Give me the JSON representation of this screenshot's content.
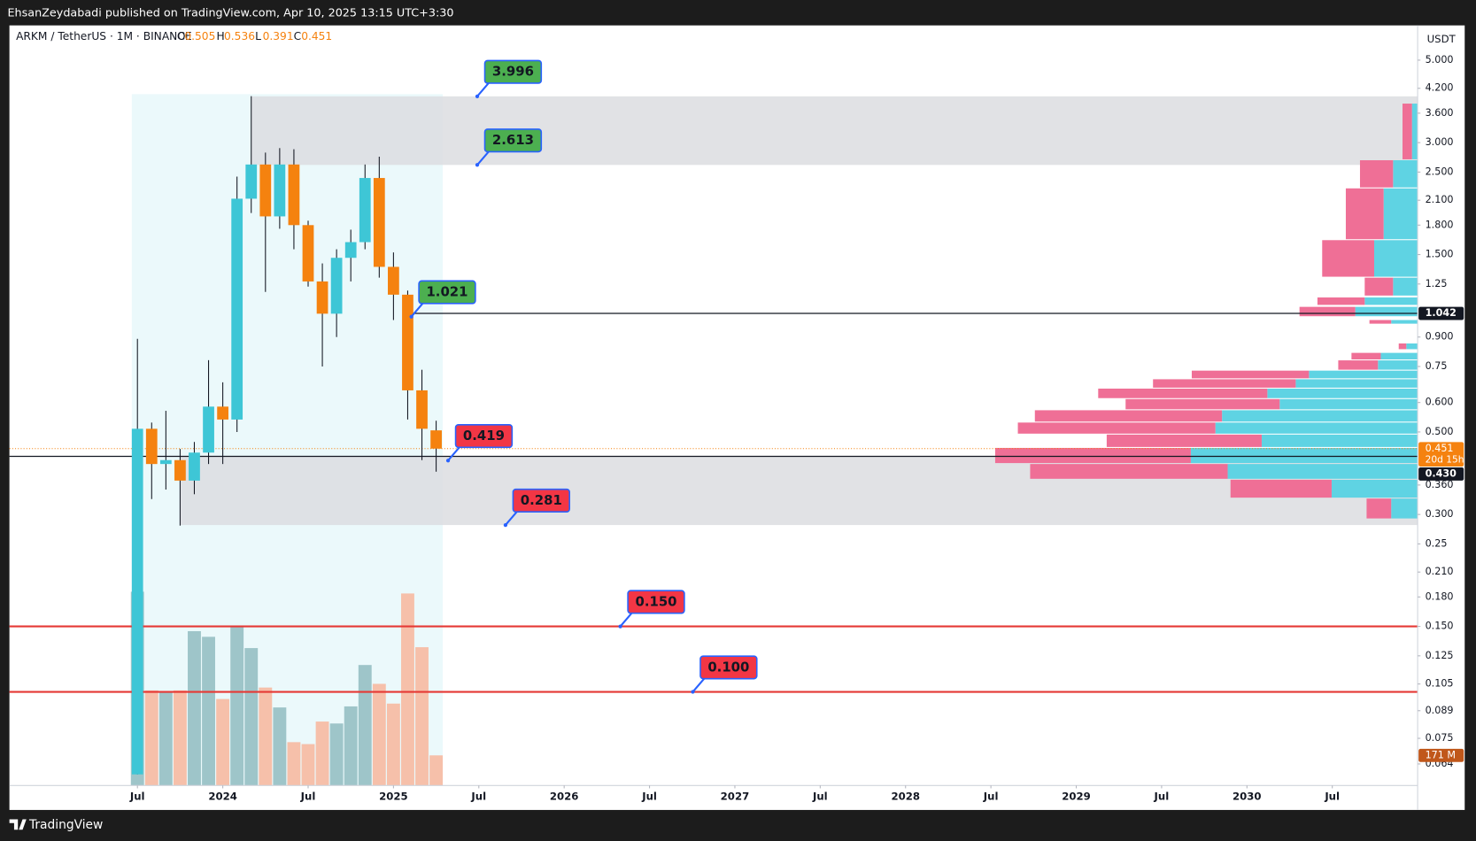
{
  "header": {
    "publisher": "EhsanZeydabadi published on TradingView.com, Apr 10, 2025 13:15 UTC+3:30"
  },
  "footer": {
    "brand": "TradingView"
  },
  "chart_data": {
    "type": "candlestick",
    "title": "ARKM / TetherUS · 1M · BINANCE",
    "ohlc_keys": [
      "O",
      "H",
      "L",
      "C"
    ],
    "axis_unit": "USDT",
    "log_scale": true,
    "up_color": "#3ec6d6",
    "down_color": "#f5820f",
    "x": [
      "2023-07",
      "2023-08",
      "2023-09",
      "2023-10",
      "2023-11",
      "2023-12",
      "2024-01",
      "2024-02",
      "2024-03",
      "2024-04",
      "2024-05",
      "2024-06",
      "2024-07",
      "2024-08",
      "2024-09",
      "2024-10",
      "2024-11",
      "2024-12",
      "2025-01",
      "2025-02",
      "2025-03",
      "2025-04"
    ],
    "open": [
      0.06,
      0.51,
      0.41,
      0.42,
      0.37,
      0.44,
      0.585,
      0.54,
      2.12,
      2.62,
      1.9,
      2.62,
      1.8,
      1.27,
      1.04,
      1.47,
      1.62,
      2.41,
      1.39,
      1.17,
      0.647,
      0.505
    ],
    "high": [
      0.89,
      0.53,
      0.57,
      0.45,
      0.47,
      0.78,
      0.68,
      2.43,
      4.0,
      2.82,
      2.9,
      2.88,
      1.85,
      1.42,
      1.55,
      1.75,
      2.62,
      2.75,
      1.52,
      1.2,
      0.735,
      0.536
    ],
    "low": [
      0.06,
      0.33,
      0.35,
      0.28,
      0.34,
      0.41,
      0.41,
      0.5,
      1.94,
      1.19,
      1.76,
      1.55,
      1.23,
      0.75,
      0.9,
      1.27,
      1.55,
      1.3,
      1.0,
      0.54,
      0.42,
      0.391
    ],
    "close": [
      0.51,
      0.41,
      0.42,
      0.37,
      0.44,
      0.585,
      0.54,
      2.12,
      2.62,
      1.9,
      2.62,
      1.8,
      1.27,
      1.04,
      1.47,
      1.62,
      2.41,
      1.39,
      1.17,
      0.647,
      0.51,
      0.451
    ],
    "countdown": "20d 15h",
    "volume": {
      "values": [
        1100,
        540,
        530,
        540,
        876,
        844,
        491,
        903,
        780,
        556,
        443,
        246,
        235,
        363,
        352,
        449,
        684,
        577,
        465,
        1090,
        785,
        171
      ],
      "last_label": "171 M",
      "up_color": "#96bfc3",
      "down_color": "#f7b9a1"
    },
    "xlim": [
      "2022-10",
      "2031-01"
    ],
    "xticks": [
      {
        "value": "2023-07",
        "label": "Jul"
      },
      {
        "value": "2024-01",
        "label": "2024"
      },
      {
        "value": "2024-07",
        "label": "Jul"
      },
      {
        "value": "2025-01",
        "label": "2025"
      },
      {
        "value": "2025-07",
        "label": "Jul"
      },
      {
        "value": "2026-01",
        "label": "2026"
      },
      {
        "value": "2026-07",
        "label": "Jul"
      },
      {
        "value": "2027-01",
        "label": "2027"
      },
      {
        "value": "2027-07",
        "label": "Jul"
      },
      {
        "value": "2028-01",
        "label": "2028"
      },
      {
        "value": "2028-07",
        "label": "Jul"
      },
      {
        "value": "2029-01",
        "label": "2029"
      },
      {
        "value": "2029-07",
        "label": "Jul"
      },
      {
        "value": "2030-01",
        "label": "2030"
      },
      {
        "value": "2030-07",
        "label": "Jul"
      }
    ],
    "ylim": [
      0.056,
      6.2
    ],
    "yticks": [
      {
        "value": 5,
        "label": "5.000"
      },
      {
        "value": 4.2,
        "label": "4.200"
      },
      {
        "value": 3.6,
        "label": "3.600"
      },
      {
        "value": 3,
        "label": "3.000"
      },
      {
        "value": 2.5,
        "label": "2.500"
      },
      {
        "value": 2.1,
        "label": "2.100"
      },
      {
        "value": 1.8,
        "label": "1.800"
      },
      {
        "value": 1.5,
        "label": "1.500"
      },
      1.25,
      {
        "value": 0.9,
        "label": "0.900"
      },
      0.75,
      {
        "value": 0.6,
        "label": "0.600"
      },
      {
        "value": 0.5,
        "label": "0.500"
      },
      {
        "value": 0.36,
        "label": "0.360"
      },
      {
        "value": 0.3,
        "label": "0.300"
      },
      0.25,
      {
        "value": 0.21,
        "label": "0.210"
      },
      {
        "value": 0.18,
        "label": "0.180"
      },
      {
        "value": 0.15,
        "label": "0.150"
      },
      0.125,
      0.105,
      0.089,
      0.075,
      0.064
    ],
    "date_range": {
      "from": "2023-07",
      "to": "2025-04",
      "top": 4.05,
      "color": "#e3f7fa"
    },
    "zones": [
      {
        "high": 3.996,
        "low": 2.613,
        "from": "2024-03",
        "color": "#dcdde0"
      },
      {
        "high": 0.43,
        "low": 0.281,
        "from": "2023-10",
        "color": "#dcdde0"
      }
    ],
    "lines": [
      {
        "price": 1.042,
        "from": "2025-02",
        "color": "#131722"
      },
      {
        "price": {
          "value": 0.43,
          "label": "0.430"
        },
        "color": "#131722"
      }
    ],
    "callouts": [
      {
        "price": 3.996,
        "color": "#4caf50"
      },
      {
        "price": 2.613,
        "color": "#4caf50"
      },
      {
        "price": 1.021,
        "color": "#4caf50"
      },
      {
        "price": 0.419,
        "color": "#f23645"
      },
      {
        "price": 0.281,
        "color": "#f23645"
      },
      {
        "price": {
          "value": 0.15,
          "label": "0.150"
        },
        "color": "#f23645",
        "line_color": "#e53935"
      },
      {
        "price": {
          "value": 0.1,
          "label": "0.100"
        },
        "color": "#f23645",
        "line_color": "#e53935"
      }
    ],
    "volume_profile": {
      "down_color": "#ef6f96",
      "up_color": "#5fd3e3",
      "rows": [
        {
          "low": 2.69,
          "high": 3.82,
          "down": 10,
          "up": 6
        },
        {
          "low": 2.26,
          "high": 2.69,
          "down": 35,
          "up": 26
        },
        {
          "low": 1.64,
          "high": 2.26,
          "down": 40,
          "up": 36
        },
        {
          "low": 1.3,
          "high": 1.64,
          "down": 55,
          "up": 46
        },
        {
          "low": 1.157,
          "high": 1.3,
          "down": 30,
          "up": 26
        },
        {
          "low": 1.092,
          "high": 1.15,
          "down": 50,
          "up": 56
        },
        {
          "low": 1.018,
          "high": 1.085,
          "down": 59,
          "up": 66
        },
        {
          "low": 0.972,
          "high": 1.0,
          "down": 23,
          "up": 28
        },
        {
          "low": 0.83,
          "high": 0.865,
          "down": 8,
          "up": 12
        },
        {
          "low": 0.779,
          "high": 0.816,
          "down": 31,
          "up": 39
        },
        {
          "low": 0.731,
          "high": 0.779,
          "down": 42,
          "up": 42
        },
        {
          "low": 0.693,
          "high": 0.731,
          "down": 124,
          "up": 115
        },
        {
          "low": 0.654,
          "high": 0.693,
          "down": 151,
          "up": 129
        },
        {
          "low": 0.613,
          "high": 0.654,
          "down": 179,
          "up": 159
        },
        {
          "low": 0.572,
          "high": 0.613,
          "down": 163,
          "up": 146
        },
        {
          "low": 0.53,
          "high": 0.572,
          "down": 198,
          "up": 207
        },
        {
          "low": 0.492,
          "high": 0.53,
          "down": 209,
          "up": 214
        },
        {
          "low": 0.453,
          "high": 0.492,
          "down": 164,
          "up": 165
        },
        {
          "low": 0.41,
          "high": 0.453,
          "down": 207,
          "up": 240
        },
        {
          "low": 0.372,
          "high": 0.41,
          "down": 209,
          "up": 201
        },
        {
          "low": 0.331,
          "high": 0.372,
          "down": 107,
          "up": 91
        },
        {
          "low": 0.291,
          "high": 0.331,
          "down": 26,
          "up": 28
        }
      ]
    }
  }
}
